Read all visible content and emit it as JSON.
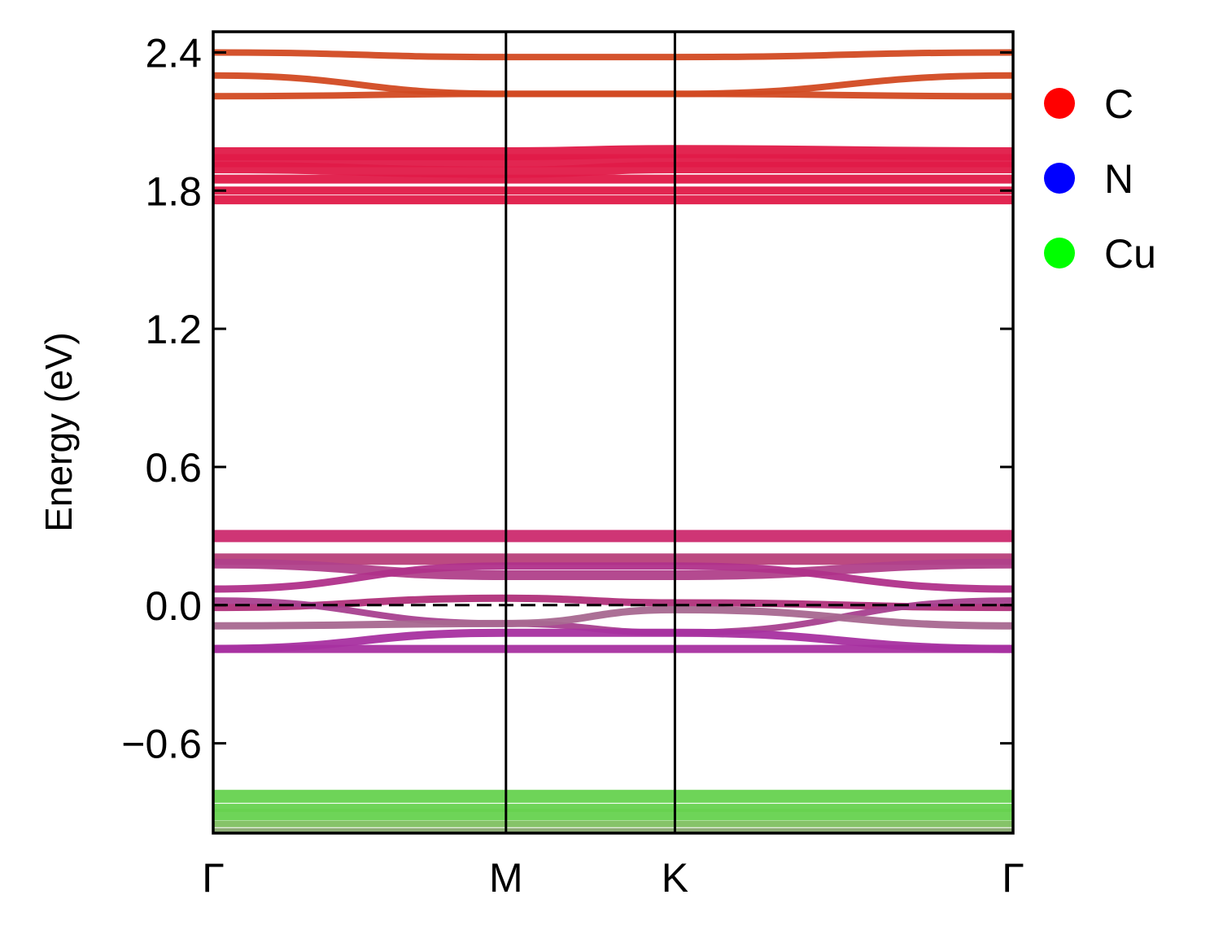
{
  "chart_data": {
    "type": "line",
    "title": "",
    "xlabel": "",
    "ylabel": "Energy (eV)",
    "ylim": [
      -0.99,
      2.49
    ],
    "yticks": [
      -0.6,
      0.0,
      0.6,
      1.2,
      1.8,
      2.4
    ],
    "ytick_labels": [
      "−0.6",
      "0.0",
      "0.6",
      "1.2",
      "1.8",
      "2.4"
    ],
    "kpath": [
      {
        "label": "Γ",
        "pos": 0.0
      },
      {
        "label": "M",
        "pos": 1.0
      },
      {
        "label": "K",
        "pos": 1.577
      },
      {
        "label": "Γ",
        "pos": 2.732
      }
    ],
    "fermi_level": 0.0,
    "grid": false,
    "legend_position": "outside-right",
    "legend": [
      {
        "name": "C",
        "color": "#ff0000"
      },
      {
        "name": "N",
        "color": "#0000ff"
      },
      {
        "name": "Cu",
        "color": "#00ff00"
      }
    ],
    "bands": [
      {
        "energies": [
          2.4,
          2.38,
          2.38,
          2.4
        ],
        "color": "#d24a22",
        "width": 8
      },
      {
        "energies": [
          2.3,
          2.22,
          2.22,
          2.3
        ],
        "color": "#d24a22",
        "width": 8
      },
      {
        "energies": [
          2.21,
          2.22,
          2.22,
          2.21
        ],
        "color": "#d24a22",
        "width": 8
      },
      {
        "energies": [
          1.96,
          1.96,
          1.97,
          1.96
        ],
        "color": "#e01a48",
        "width": 16
      },
      {
        "energies": [
          1.93,
          1.93,
          1.93,
          1.93
        ],
        "color": "#e01a48",
        "width": 16
      },
      {
        "energies": [
          1.9,
          1.88,
          1.9,
          1.9
        ],
        "color": "#e01a48",
        "width": 14
      },
      {
        "energies": [
          1.85,
          1.85,
          1.85,
          1.85
        ],
        "color": "#e01a48",
        "width": 11
      },
      {
        "energies": [
          1.8,
          1.8,
          1.8,
          1.8
        ],
        "color": "#e01a48",
        "width": 10
      },
      {
        "energies": [
          1.76,
          1.76,
          1.76,
          1.76
        ],
        "color": "#e01a48",
        "width": 11
      },
      {
        "energies": [
          0.3,
          0.3,
          0.3,
          0.3
        ],
        "color": "#cc2a6e",
        "width": 15
      },
      {
        "energies": [
          0.2,
          0.2,
          0.2,
          0.2
        ],
        "color": "#b8407a",
        "width": 14
      },
      {
        "energies": [
          0.18,
          0.13,
          0.13,
          0.18
        ],
        "color": "#b0408a",
        "width": 12
      },
      {
        "energies": [
          0.07,
          0.17,
          0.17,
          0.07
        ],
        "color": "#b0308a",
        "width": 9
      },
      {
        "energies": [
          -0.01,
          0.03,
          0.01,
          -0.01
        ],
        "color": "#b0307a",
        "width": 9
      },
      {
        "energies": [
          0.02,
          -0.08,
          -0.12,
          0.02
        ],
        "color": "#a8408f",
        "width": 8
      },
      {
        "energies": [
          -0.09,
          -0.08,
          -0.02,
          -0.09
        ],
        "color": "#a86890",
        "width": 9
      },
      {
        "energies": [
          -0.19,
          -0.12,
          -0.12,
          -0.19
        ],
        "color": "#a830a0",
        "width": 10
      },
      {
        "energies": [
          -0.19,
          -0.19,
          -0.19,
          -0.19
        ],
        "color": "#a830a0",
        "width": 10
      },
      {
        "energies": [
          -0.83,
          -0.83,
          -0.83,
          -0.83
        ],
        "color": "#66d24f",
        "width": 16
      },
      {
        "energies": [
          -0.88,
          -0.88,
          -0.88,
          -0.88
        ],
        "color": "#66d24f",
        "width": 10
      },
      {
        "energies": [
          -0.91,
          -0.91,
          -0.91,
          -0.91
        ],
        "color": "#66d24f",
        "width": 14
      },
      {
        "energies": [
          -0.95,
          -0.95,
          -0.95,
          -0.95
        ],
        "color": "#7ec060",
        "width": 8
      },
      {
        "energies": [
          -0.98,
          -0.98,
          -0.98,
          -0.98
        ],
        "color": "#88a870",
        "width": 7
      }
    ]
  }
}
